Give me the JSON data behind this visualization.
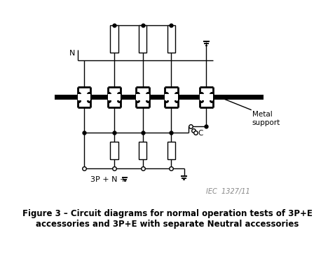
{
  "title": "Figure 3 – Circuit diagrams for normal operation tests of 3P+E\naccessories and 3P+E with separate Neutral accessories",
  "iec_label": "IEC  1327/11",
  "label_N": "N",
  "label_3PNE": "3P + N + ",
  "label_metal": "Metal\nsupport",
  "label_C": "C",
  "bg_color": "#ffffff",
  "line_color": "#000000",
  "bus_bar_color": "#000000"
}
